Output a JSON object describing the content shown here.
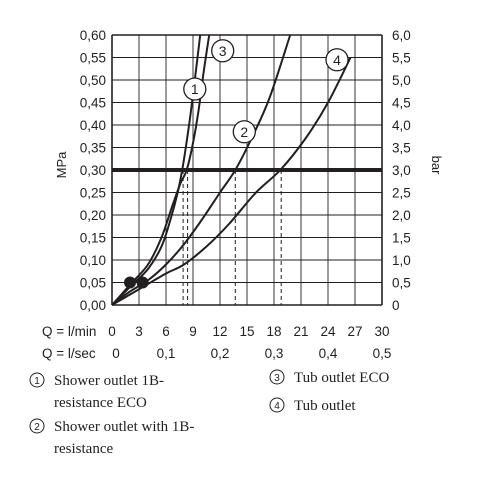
{
  "chart_data": {
    "type": "line",
    "ylabel_left": "MPa",
    "ylabel_right": "bar",
    "x_label_flow_min": "Q = l/min",
    "x_label_flow_sec": "Q = l/sec",
    "x_ticks_min": [
      "0",
      "3",
      "6",
      "9",
      "12",
      "15",
      "18",
      "21",
      "24",
      "27",
      "30"
    ],
    "x_ticks_sec": [
      "0",
      "0,1",
      "0,2",
      "0,3",
      "0,4",
      "0,5"
    ],
    "y_ticks_left": [
      "0,00",
      "0,05",
      "0,10",
      "0,15",
      "0,20",
      "0,25",
      "0,30",
      "0,35",
      "0,40",
      "0,45",
      "0,50",
      "0,55",
      "0,60"
    ],
    "y_ticks_right": [
      "0",
      "0,5",
      "1,0",
      "1,5",
      "2,0",
      "2,5",
      "3,0",
      "3,5",
      "4,0",
      "4,5",
      "5,0",
      "5,5",
      "6,0"
    ],
    "xlim": [
      0,
      30
    ],
    "ylim": [
      0,
      0.6
    ],
    "grid": true,
    "reference_line_mpa": 0.3,
    "markers": [
      {
        "x": 2.0,
        "y": 0.05
      },
      {
        "x": 3.4,
        "y": 0.05
      }
    ],
    "series": [
      {
        "number": "1",
        "x": [
          0,
          2,
          4,
          5.5,
          6.5,
          7.3,
          7.8,
          8.2,
          8.7,
          9.2,
          9.8
        ],
        "y": [
          0,
          0.04,
          0.08,
          0.13,
          0.19,
          0.25,
          0.3,
          0.35,
          0.42,
          0.5,
          0.6
        ],
        "dashed_drop_x": 7.9,
        "label_at": {
          "x": 9.2,
          "y": 0.48
        }
      },
      {
        "number": "2",
        "x": [
          0,
          2,
          4,
          6,
          8,
          10,
          12,
          13.7,
          15.5,
          17.5,
          19.8
        ],
        "y": [
          0,
          0.03,
          0.055,
          0.09,
          0.135,
          0.19,
          0.25,
          0.3,
          0.37,
          0.46,
          0.6
        ],
        "dashed_drop_x": 13.7,
        "label_at": {
          "x": 14.7,
          "y": 0.385
        }
      },
      {
        "number": "3",
        "x": [
          0,
          2,
          4,
          5.5,
          6.7,
          7.6,
          8.3,
          9.0,
          9.6,
          10.2,
          10.8
        ],
        "y": [
          0,
          0.045,
          0.09,
          0.15,
          0.22,
          0.27,
          0.3,
          0.36,
          0.43,
          0.52,
          0.6
        ],
        "dashed_drop_x": 8.4,
        "label_at": {
          "x": 12.3,
          "y": 0.565
        }
      },
      {
        "number": "4",
        "x": [
          0,
          3,
          6,
          8,
          10.5,
          13,
          16,
          18.7,
          21.5,
          24,
          26.5
        ],
        "y": [
          0,
          0.035,
          0.07,
          0.09,
          0.13,
          0.18,
          0.25,
          0.3,
          0.37,
          0.45,
          0.55
        ],
        "dashed_drop_x": 18.8,
        "label_at": {
          "x": 25.0,
          "y": 0.545
        }
      }
    ],
    "legend": [
      {
        "number": "1",
        "lines": [
          "Shower outlet 1B-",
          "resistance ECO"
        ]
      },
      {
        "number": "2",
        "lines": [
          "Shower outlet with 1B-",
          "resistance"
        ]
      },
      {
        "number": "3",
        "lines": [
          "Tub outlet ECO"
        ]
      },
      {
        "number": "4",
        "lines": [
          "Tub outlet"
        ]
      }
    ]
  }
}
